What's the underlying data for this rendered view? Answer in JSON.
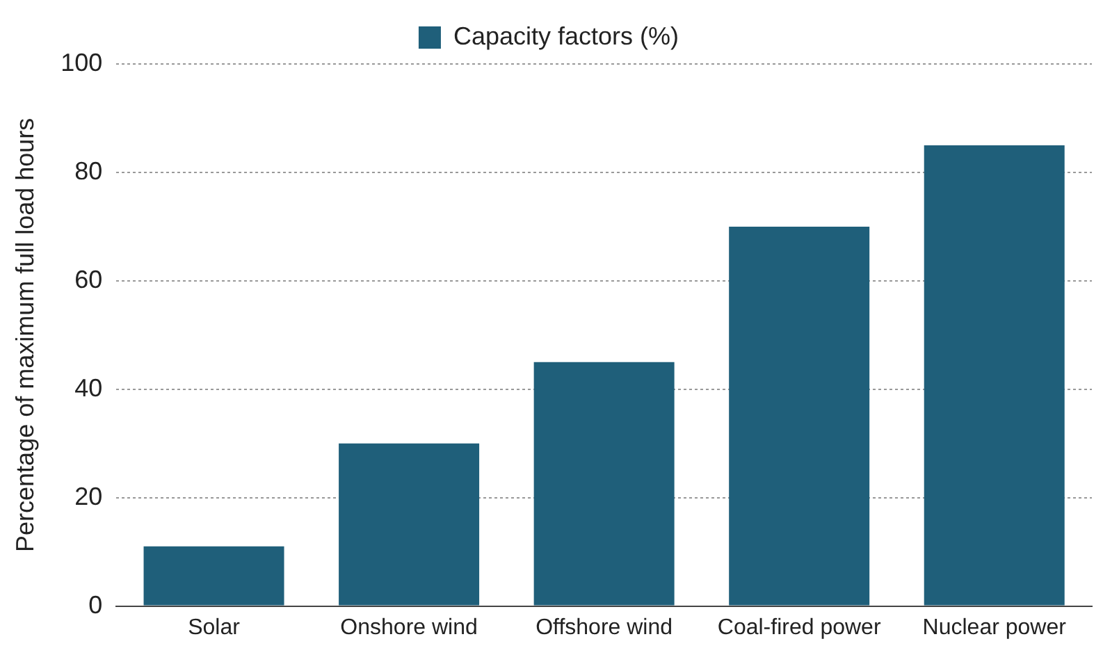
{
  "chart_data": {
    "type": "bar",
    "ylabel": "Percentage of maximum full load hours",
    "categories": [
      "Solar",
      "Onshore wind",
      "Offshore wind",
      "Coal-fired power",
      "Nuclear power"
    ],
    "series": [
      {
        "name": "Capacity factors (%)",
        "color": "#1f5f7a",
        "values": [
          11,
          30,
          45,
          70,
          85
        ]
      }
    ],
    "ylim": [
      0,
      100
    ],
    "yticks": [
      0,
      20,
      40,
      60,
      80,
      100
    ],
    "grid": "y",
    "legend": "top"
  }
}
